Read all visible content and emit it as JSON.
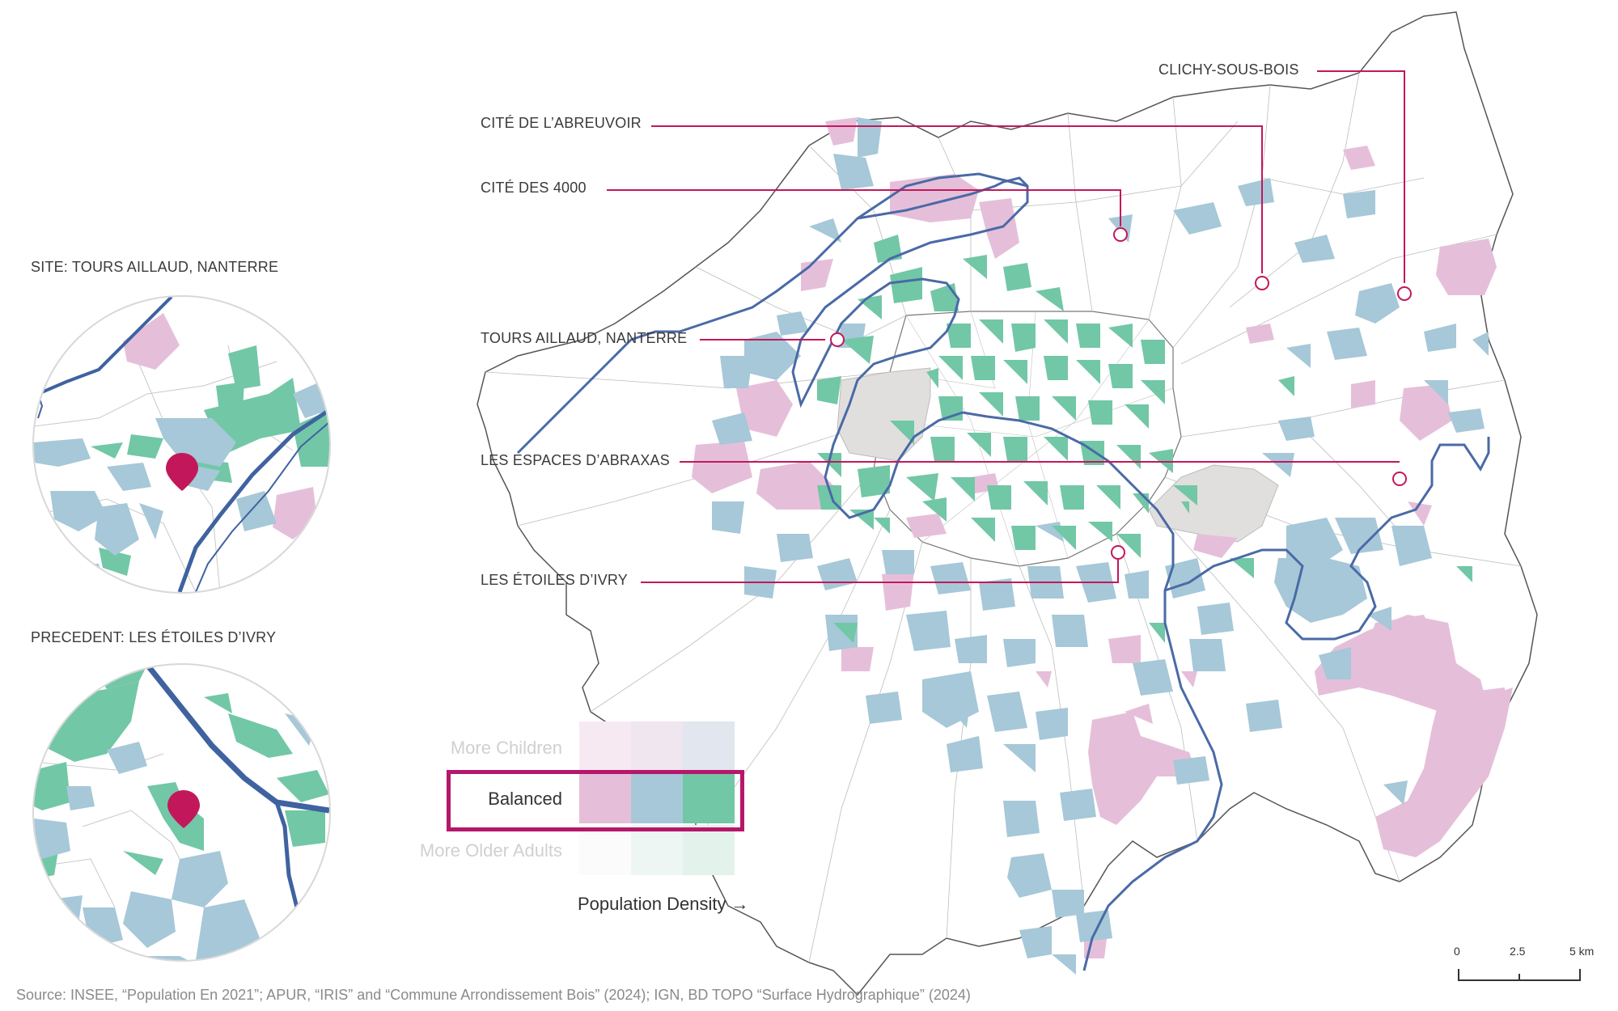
{
  "insets": [
    {
      "title": "SITE: TOURS AILLAUD, NANTERRE"
    },
    {
      "title": "PRECEDENT: LES ÉTOILES D’IVRY"
    }
  ],
  "callouts": [
    {
      "label": "CLICHY-SOUS-BOIS"
    },
    {
      "label": "CITÉ DE L’ABREUVOIR"
    },
    {
      "label": "CITÉ DES 4000"
    },
    {
      "label": "TOURS AILLAUD, NANTERRE"
    },
    {
      "label": "LES ESPACES D’ABRAXAS"
    },
    {
      "label": "LES ÉTOILES D’IVRY"
    }
  ],
  "legend": {
    "rows": [
      {
        "label": "More Children",
        "faded": true
      },
      {
        "label": "Balanced",
        "faded": false
      },
      {
        "label": "More Older Adults",
        "faded": true
      }
    ],
    "axis_label": "Population Density →",
    "colors": {
      "pink": "#e5bfd9",
      "blue": "#a6c8d8",
      "green": "#72c7a6",
      "highlight": "#b5176a"
    }
  },
  "scale_bar": {
    "labels": [
      "0",
      "2.5",
      "5 km"
    ]
  },
  "source": "Source: INSEE, “Population En 2021”; APUR, “IRIS” and “Commune Arrondissement Bois” (2024); IGN, BD TOPO “Surface Hydrographique” (2024)"
}
